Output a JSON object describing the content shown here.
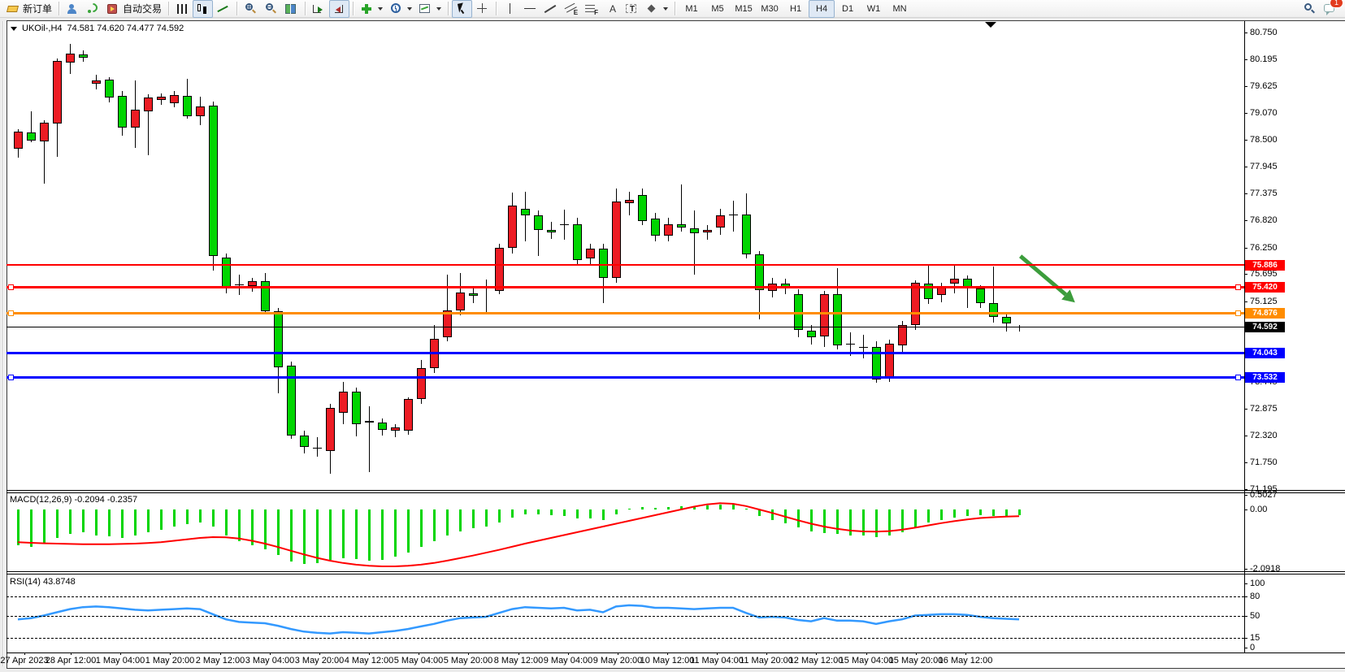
{
  "toolbar": {
    "items": [
      {
        "name": "new-order-button",
        "icon": "new-order",
        "label": "新订单"
      },
      {
        "type": "sep"
      },
      {
        "name": "profile-button",
        "icon": "profile"
      },
      {
        "name": "signal-button",
        "icon": "signal"
      },
      {
        "name": "auto-trading-button",
        "icon": "autotrade",
        "label": "自动交易"
      },
      {
        "type": "sep"
      },
      {
        "name": "bar-chart-button",
        "icon": "bars"
      },
      {
        "name": "candlestick-chart-button",
        "icon": "candles",
        "pressed": true
      },
      {
        "name": "line-chart-button",
        "icon": "linechart"
      },
      {
        "type": "sep"
      },
      {
        "name": "zoom-in-button",
        "icon": "zoomin"
      },
      {
        "name": "zoom-out-button",
        "icon": "zoomout"
      },
      {
        "name": "tile-windows-button",
        "icon": "tile"
      },
      {
        "type": "sep"
      },
      {
        "name": "auto-scroll-button",
        "icon": "autoscroll"
      },
      {
        "name": "chart-shift-button",
        "icon": "chartshift",
        "pressed": true
      },
      {
        "type": "sep"
      },
      {
        "name": "indicators-button",
        "icon": "indicators",
        "caret": true
      },
      {
        "name": "periods-button",
        "icon": "clock",
        "caret": true
      },
      {
        "name": "templates-button",
        "icon": "template",
        "caret": true
      },
      {
        "type": "sep"
      },
      {
        "name": "cursor-button",
        "icon": "cursor",
        "pressed": true
      },
      {
        "name": "crosshair-button",
        "icon": "crosshair"
      },
      {
        "type": "sep"
      },
      {
        "name": "vertical-line-button",
        "icon": "vline"
      },
      {
        "name": "horizontal-line-button",
        "icon": "hline"
      },
      {
        "name": "trendline-button",
        "icon": "trendline"
      },
      {
        "name": "equidistant-channel-button",
        "icon": "channel",
        "glyph": "E"
      },
      {
        "name": "fibonacci-button",
        "icon": "fibo",
        "glyph": "F"
      },
      {
        "name": "text-button",
        "icon": "text",
        "glyph": "A"
      },
      {
        "name": "text-label-button",
        "icon": "label",
        "glyph": "T"
      },
      {
        "name": "shapes-button",
        "icon": "shapes",
        "caret": true
      }
    ],
    "timeframes": [
      "M1",
      "M5",
      "M15",
      "M30",
      "H1",
      "H4",
      "D1",
      "W1",
      "MN"
    ],
    "active_timeframe": "H4",
    "right_items": [
      {
        "name": "search-button",
        "icon": "search"
      },
      {
        "name": "chat-button",
        "icon": "chat",
        "badge": "1"
      }
    ]
  },
  "chart": {
    "title_symbol": "UKOil-,H4",
    "title_ohlc": "74.581 74.620 74.477 74.592"
  },
  "chart_data": {
    "type": "candlestick",
    "symbol": "UKOil-",
    "timeframe": "H4",
    "up_color": "#ED1C24",
    "down_color": "#00D500",
    "price_axis_ticks": [
      "80.750",
      "80.195",
      "79.625",
      "79.070",
      "78.500",
      "77.945",
      "77.375",
      "76.820",
      "76.250",
      "75.695",
      "75.125",
      "74.550",
      "74.000",
      "73.445",
      "72.875",
      "72.320",
      "71.750",
      "71.195"
    ],
    "price_lines": [
      {
        "price": 75.886,
        "color": "#FF0000",
        "width": 2,
        "handles": false
      },
      {
        "price": 75.42,
        "color": "#FF0000",
        "width": 3,
        "handles": true
      },
      {
        "price": 74.876,
        "color": "#FF8C00",
        "width": 3,
        "handles": true
      },
      {
        "price": 74.043,
        "color": "#0000FF",
        "width": 3,
        "handles": false
      },
      {
        "price": 73.532,
        "color": "#0000FF",
        "width": 3,
        "handles": true
      }
    ],
    "current_price": 74.592,
    "current_price_color": "#000000",
    "date_axis_labels": [
      "27 Apr 2023",
      "28 Apr 12:00",
      "1 May 04:00",
      "1 May 20:00",
      "2 May 12:00",
      "3 May 04:00",
      "3 May 20:00",
      "4 May 12:00",
      "5 May 04:00",
      "5 May 20:00",
      "8 May 12:00",
      "9 May 04:00",
      "9 May 20:00",
      "10 May 12:00",
      "11 May 04:00",
      "11 May 20:00",
      "12 May 12:00",
      "15 May 04:00",
      "15 May 20:00",
      "16 May 12:00"
    ],
    "candles": [
      [
        78.32,
        78.72,
        78.12,
        78.68
      ],
      [
        78.66,
        79.1,
        78.45,
        78.49
      ],
      [
        78.48,
        78.92,
        77.6,
        78.87
      ],
      [
        78.84,
        80.2,
        78.15,
        80.15
      ],
      [
        80.12,
        80.51,
        79.88,
        80.31
      ],
      [
        80.29,
        80.38,
        80.15,
        80.22
      ],
      [
        79.68,
        79.86,
        79.55,
        79.75
      ],
      [
        79.76,
        79.82,
        79.3,
        79.38
      ],
      [
        79.42,
        79.52,
        78.59,
        78.76
      ],
      [
        78.76,
        79.75,
        78.34,
        79.13
      ],
      [
        79.1,
        79.45,
        78.17,
        79.39
      ],
      [
        79.34,
        79.48,
        79.25,
        79.41
      ],
      [
        79.27,
        79.52,
        79.18,
        79.44
      ],
      [
        79.42,
        79.78,
        78.95,
        79.0
      ],
      [
        79.0,
        79.4,
        78.8,
        79.2
      ],
      [
        79.22,
        79.3,
        75.77,
        76.08
      ],
      [
        76.04,
        76.12,
        75.29,
        75.43
      ],
      [
        75.47,
        75.68,
        75.25,
        75.44
      ],
      [
        75.43,
        75.62,
        75.33,
        75.54
      ],
      [
        75.54,
        75.72,
        74.85,
        74.91
      ],
      [
        74.92,
        74.98,
        73.19,
        73.75
      ],
      [
        73.78,
        73.86,
        72.25,
        72.32
      ],
      [
        72.32,
        72.42,
        71.94,
        72.08
      ],
      [
        72.06,
        72.28,
        71.88,
        72.04
      ],
      [
        72.0,
        72.97,
        71.5,
        72.9
      ],
      [
        72.79,
        73.44,
        72.55,
        73.24
      ],
      [
        73.24,
        73.32,
        72.3,
        72.56
      ],
      [
        72.58,
        72.92,
        71.55,
        72.62
      ],
      [
        72.58,
        72.68,
        72.32,
        72.42
      ],
      [
        72.42,
        72.56,
        72.28,
        72.49
      ],
      [
        72.42,
        73.12,
        72.34,
        73.08
      ],
      [
        73.08,
        73.9,
        72.98,
        73.73
      ],
      [
        73.73,
        74.63,
        73.62,
        74.34
      ],
      [
        74.38,
        75.68,
        74.28,
        74.94
      ],
      [
        74.94,
        75.72,
        74.84,
        75.31
      ],
      [
        75.29,
        75.42,
        75.08,
        75.24
      ],
      [
        75.41,
        75.58,
        74.88,
        75.41
      ],
      [
        75.34,
        76.33,
        75.28,
        76.24
      ],
      [
        76.24,
        77.4,
        76.12,
        77.13
      ],
      [
        77.06,
        77.42,
        76.38,
        76.93
      ],
      [
        76.93,
        77.02,
        76.07,
        76.62
      ],
      [
        76.62,
        76.78,
        76.42,
        76.57
      ],
      [
        76.74,
        77.05,
        76.42,
        76.74
      ],
      [
        76.74,
        76.88,
        75.88,
        75.99
      ],
      [
        76.02,
        76.32,
        75.9,
        76.22
      ],
      [
        76.22,
        76.32,
        75.08,
        75.61
      ],
      [
        75.61,
        77.49,
        75.52,
        77.21
      ],
      [
        77.18,
        77.42,
        76.92,
        77.25
      ],
      [
        77.35,
        77.48,
        76.72,
        76.81
      ],
      [
        76.86,
        76.98,
        76.38,
        76.5
      ],
      [
        76.5,
        76.88,
        76.38,
        76.74
      ],
      [
        76.74,
        77.57,
        76.58,
        76.67
      ],
      [
        76.65,
        77.02,
        75.68,
        76.55
      ],
      [
        76.57,
        76.72,
        76.42,
        76.62
      ],
      [
        76.67,
        77.06,
        76.52,
        76.93
      ],
      [
        76.94,
        77.23,
        76.58,
        76.94
      ],
      [
        76.94,
        77.38,
        76.02,
        76.11
      ],
      [
        76.11,
        76.18,
        74.75,
        75.36
      ],
      [
        75.34,
        75.62,
        75.22,
        75.5
      ],
      [
        75.5,
        75.6,
        75.28,
        75.43
      ],
      [
        75.28,
        75.38,
        74.38,
        74.53
      ],
      [
        74.51,
        74.62,
        74.22,
        74.38
      ],
      [
        74.4,
        75.35,
        74.17,
        75.28
      ],
      [
        75.28,
        75.82,
        74.12,
        74.21
      ],
      [
        74.24,
        74.48,
        73.98,
        74.24
      ],
      [
        74.17,
        74.42,
        73.92,
        74.17
      ],
      [
        74.17,
        74.28,
        73.42,
        73.49
      ],
      [
        73.51,
        74.32,
        73.44,
        74.24
      ],
      [
        74.21,
        74.72,
        74.02,
        74.63
      ],
      [
        74.63,
        75.56,
        74.52,
        75.51
      ],
      [
        75.5,
        75.91,
        75.08,
        75.17
      ],
      [
        75.25,
        75.52,
        75.12,
        75.42
      ],
      [
        75.49,
        75.9,
        75.28,
        75.59
      ],
      [
        75.59,
        75.66,
        74.98,
        75.39
      ],
      [
        75.39,
        75.46,
        74.98,
        75.08
      ],
      [
        75.08,
        75.85,
        74.68,
        74.79
      ],
      [
        74.79,
        74.86,
        74.48,
        74.65
      ],
      [
        74.581,
        74.62,
        74.477,
        74.592
      ]
    ],
    "indicators": {
      "macd": {
        "label": "MACD(12,26,9) -0.2094 -0.2357",
        "axis_ticks": [
          "0.5027",
          "0.00",
          "-2.0918"
        ],
        "histogram_color": "#00D500",
        "signal_color": "#FF0000",
        "histogram": [
          -1.25,
          -1.3,
          -1.2,
          -1.0,
          -0.85,
          -0.8,
          -0.9,
          -0.95,
          -1.0,
          -0.9,
          -0.8,
          -0.7,
          -0.6,
          -0.52,
          -0.46,
          -0.6,
          -0.9,
          -1.1,
          -1.25,
          -1.4,
          -1.6,
          -1.82,
          -1.92,
          -1.88,
          -1.78,
          -1.72,
          -1.75,
          -1.8,
          -1.76,
          -1.65,
          -1.5,
          -1.32,
          -1.12,
          -0.92,
          -0.76,
          -0.66,
          -0.6,
          -0.46,
          -0.28,
          -0.18,
          -0.16,
          -0.2,
          -0.22,
          -0.3,
          -0.32,
          -0.36,
          -0.16,
          0.04,
          0.08,
          0.06,
          0.08,
          0.12,
          0.12,
          0.14,
          0.16,
          0.18,
          0.04,
          -0.22,
          -0.38,
          -0.48,
          -0.62,
          -0.76,
          -0.82,
          -0.86,
          -0.92,
          -0.92,
          -0.96,
          -0.9,
          -0.8,
          -0.62,
          -0.46,
          -0.36,
          -0.28,
          -0.22,
          -0.2,
          -0.22,
          -0.22,
          -0.21
        ],
        "signal": [
          -1.15,
          -1.17,
          -1.19,
          -1.2,
          -1.21,
          -1.22,
          -1.22,
          -1.22,
          -1.21,
          -1.2,
          -1.18,
          -1.15,
          -1.1,
          -1.05,
          -1.0,
          -0.97,
          -0.98,
          -1.02,
          -1.1,
          -1.2,
          -1.32,
          -1.45,
          -1.58,
          -1.7,
          -1.8,
          -1.88,
          -1.94,
          -1.98,
          -2.0,
          -2.0,
          -1.98,
          -1.94,
          -1.88,
          -1.8,
          -1.71,
          -1.62,
          -1.52,
          -1.42,
          -1.31,
          -1.2,
          -1.1,
          -1.0,
          -0.9,
          -0.8,
          -0.7,
          -0.6,
          -0.5,
          -0.4,
          -0.3,
          -0.2,
          -0.1,
          0.0,
          0.1,
          0.18,
          0.22,
          0.2,
          0.12,
          0.0,
          -0.12,
          -0.25,
          -0.38,
          -0.5,
          -0.6,
          -0.68,
          -0.74,
          -0.77,
          -0.78,
          -0.76,
          -0.71,
          -0.64,
          -0.56,
          -0.48,
          -0.41,
          -0.35,
          -0.3,
          -0.27,
          -0.25,
          -0.236
        ]
      },
      "rsi": {
        "label": "RSI(14) 43.8748",
        "axis_ticks": [
          "100",
          "80",
          "50",
          "15",
          "0"
        ],
        "levels": [
          80,
          50,
          15
        ],
        "line_color": "#3399FF",
        "values": [
          44,
          46,
          50,
          55,
          60,
          63,
          64,
          63,
          61,
          59,
          58,
          59,
          60,
          61,
          60,
          52,
          44,
          40,
          39,
          38,
          34,
          29,
          25,
          23,
          22,
          24,
          23,
          22,
          24,
          26,
          29,
          33,
          37,
          42,
          46,
          47,
          48,
          54,
          60,
          63,
          62,
          61,
          62,
          58,
          59,
          55,
          64,
          66,
          65,
          62,
          62,
          61,
          60,
          61,
          62,
          62,
          54,
          47,
          48,
          47,
          43,
          41,
          46,
          42,
          42,
          41,
          37,
          41,
          44,
          50,
          51,
          52,
          52,
          51,
          48,
          46,
          45,
          43.9
        ]
      }
    },
    "annotations": [
      {
        "type": "arrow",
        "name": "down-arrow",
        "color": "#3C9D3C",
        "from_bar": 78.1,
        "from_price": 76.07,
        "to_bar": 82.3,
        "to_price": 75.1
      }
    ]
  }
}
